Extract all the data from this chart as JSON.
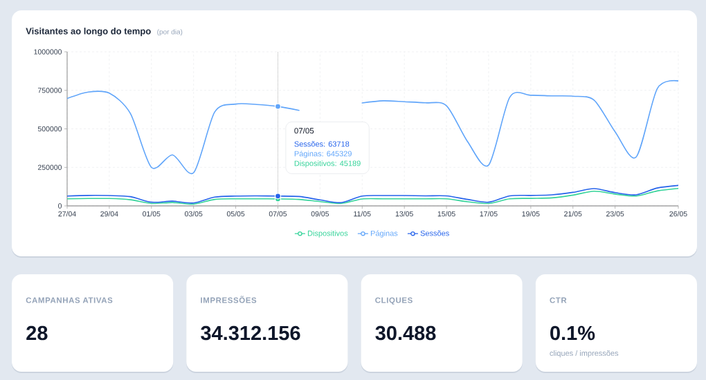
{
  "chart_data": [
    {
      "type": "line",
      "title": "Visitantes ao longo do tempo",
      "subtitle": "(por dia)",
      "categories": [
        "27/04",
        null,
        "29/04",
        null,
        "01/05",
        null,
        "03/05",
        null,
        "05/05",
        null,
        "07/05",
        null,
        "09/05",
        null,
        "11/05",
        null,
        "13/05",
        null,
        "15/05",
        null,
        "17/05",
        null,
        "19/05",
        null,
        "21/05",
        null,
        "23/05",
        null,
        null,
        "26/05"
      ],
      "series": [
        {
          "name": "Dispositivos",
          "color": "#34d399",
          "values": [
            46000,
            48000,
            48000,
            40000,
            16000,
            22000,
            12000,
            42000,
            46000,
            46000,
            45189,
            42000,
            28000,
            16000,
            45000,
            46000,
            46000,
            46000,
            46000,
            27000,
            16000,
            46000,
            49000,
            52000,
            70000,
            95000,
            77000,
            64000,
            97000,
            113000
          ]
        },
        {
          "name": "Páginas",
          "color": "#60a5fa",
          "values": [
            697000,
            739000,
            732000,
            600000,
            250000,
            331000,
            215000,
            609000,
            661000,
            658000,
            645329,
            620000,
            null,
            null,
            668000,
            682000,
            676000,
            669000,
            650000,
            417000,
            265000,
            705000,
            718000,
            714000,
            712000,
            687000,
            481000,
            317000,
            761000,
            811000
          ]
        },
        {
          "name": "Sessões",
          "color": "#2563eb",
          "values": [
            64000,
            68000,
            67000,
            60000,
            24000,
            31000,
            19000,
            57000,
            64000,
            65000,
            63718,
            61000,
            39000,
            21000,
            64000,
            67000,
            67000,
            65000,
            65000,
            42000,
            24000,
            65000,
            68000,
            72000,
            88000,
            112000,
            86000,
            72000,
            116000,
            133000
          ]
        }
      ],
      "ylim": [
        0,
        1000000
      ],
      "yticks": [
        0,
        250000,
        500000,
        750000,
        1000000
      ],
      "grid": true,
      "legend": "bottom",
      "ref_lines": [
        {
          "axis": "x",
          "value": "07/05",
          "color": "#c8c8c8"
        }
      ],
      "annotations": [
        "07/05",
        "Sessões: 63718",
        "Páginas: 645329",
        "Dispositivos: 45189"
      ]
    },
    {
      "type": "other",
      "title": "CAMPANHAS ATIVAS",
      "annotations": [
        "28"
      ]
    },
    {
      "type": "other",
      "title": "IMPRESSÕES",
      "annotations": [
        "34.312.156"
      ]
    },
    {
      "type": "other",
      "title": "CLIQUES",
      "annotations": [
        "30.488"
      ]
    },
    {
      "type": "other",
      "title": "CTR",
      "annotations": [
        "0.1%",
        "cliques / impressões"
      ]
    }
  ]
}
